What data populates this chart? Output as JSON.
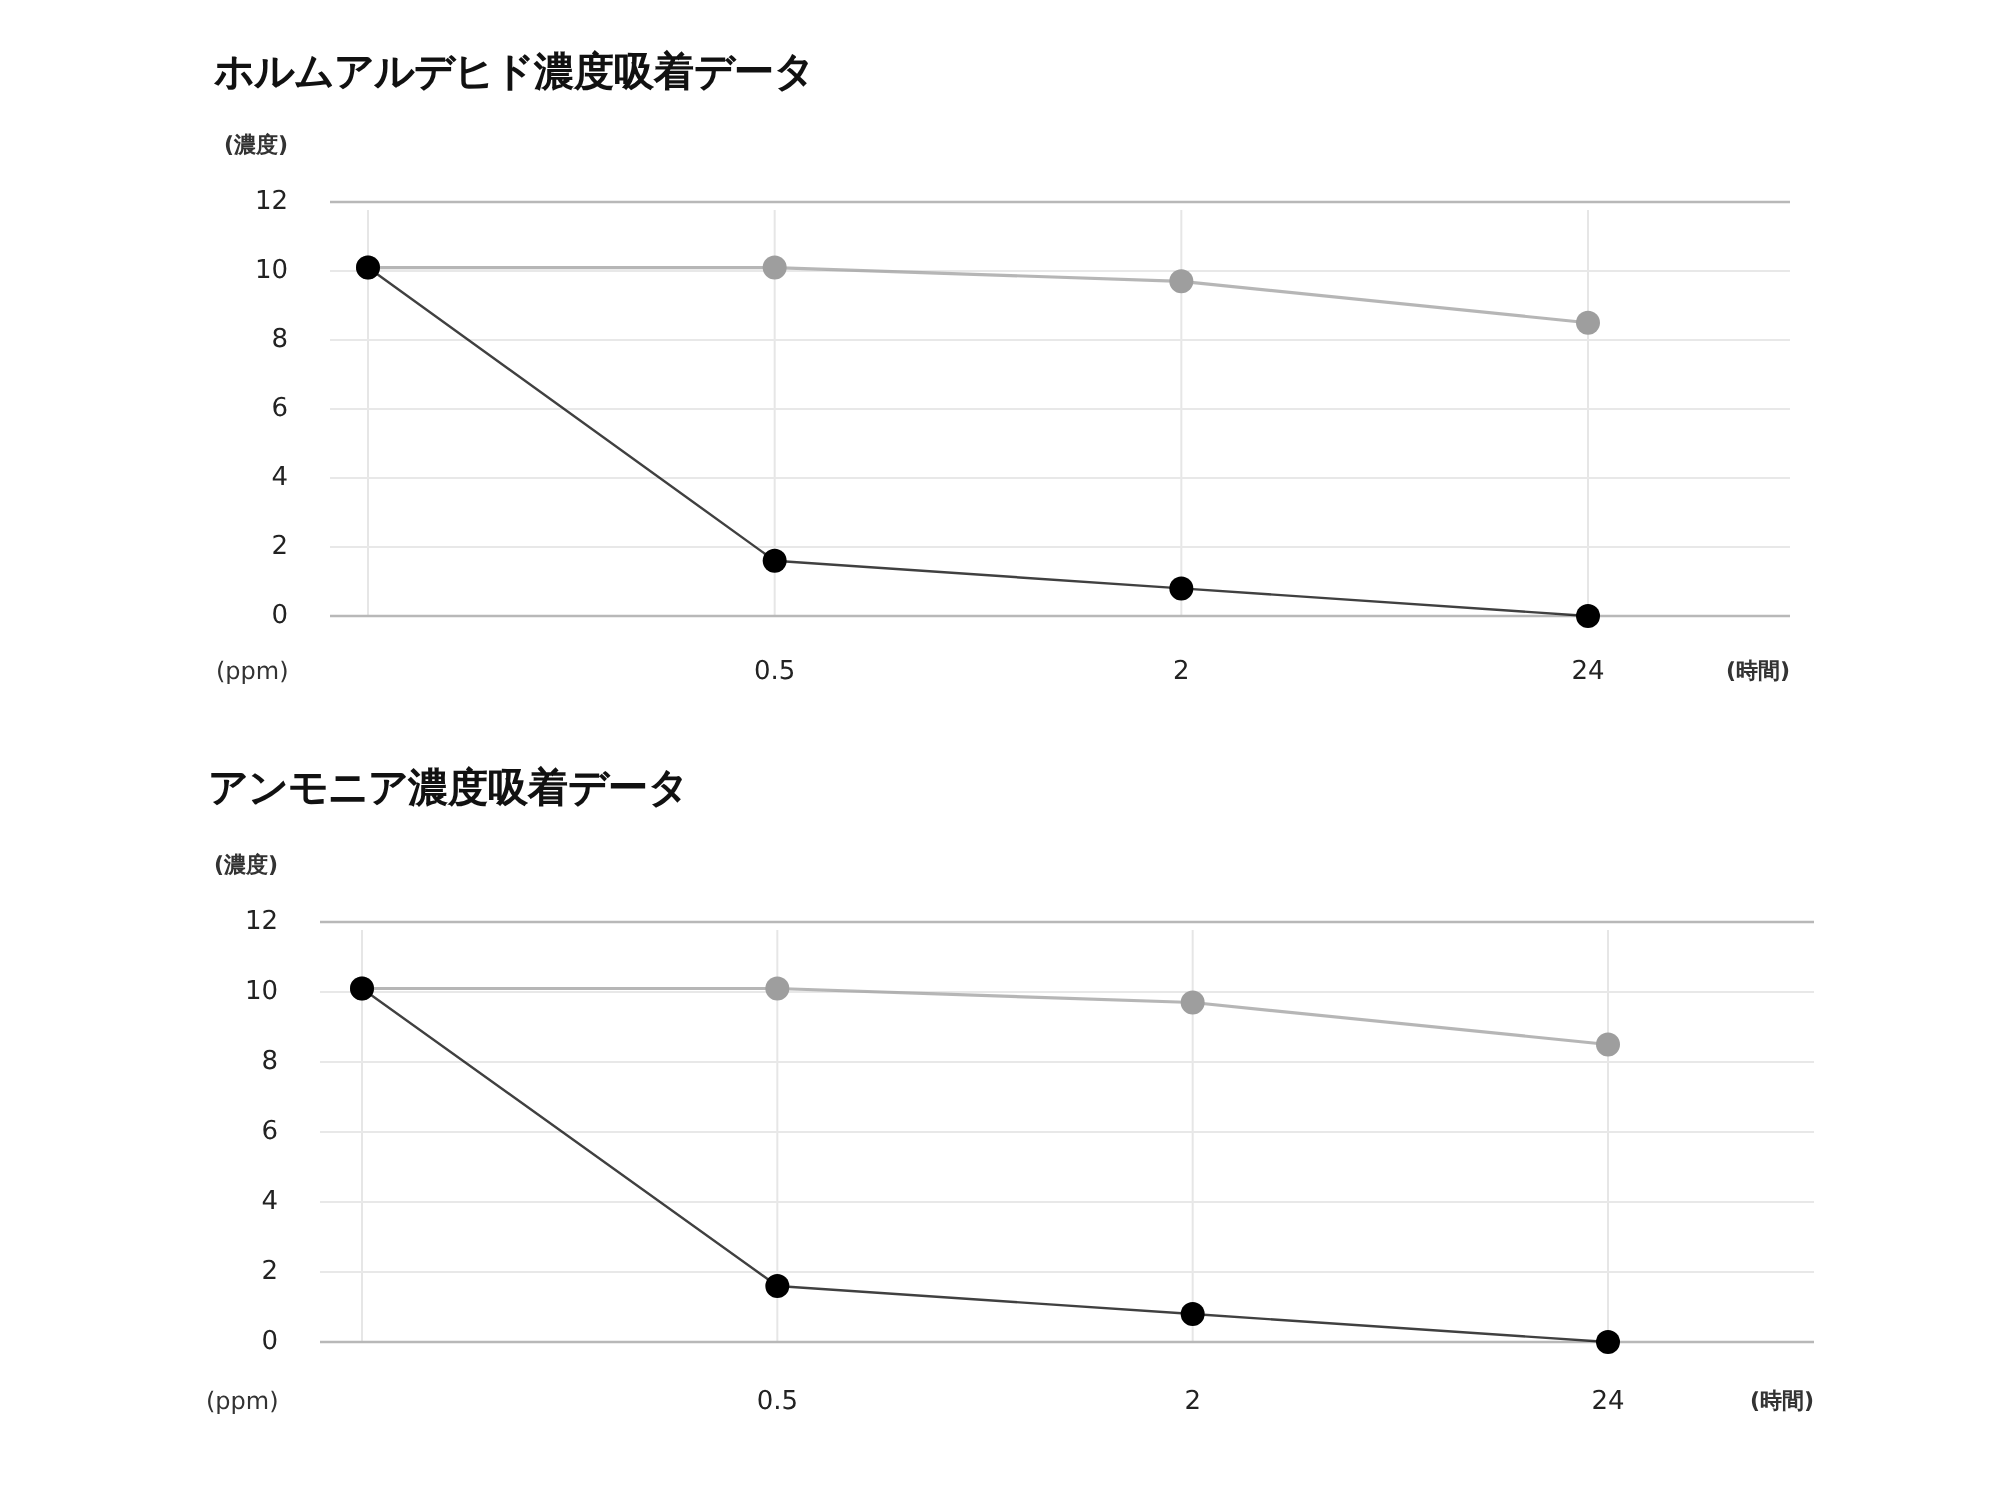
{
  "chart_data": [
    {
      "type": "line",
      "title": "ホルムアルデヒド濃度吸着データ",
      "ylabel": "(濃度)",
      "xlabel": "(時間)",
      "annotations": [
        "(ppm)"
      ],
      "categories": [
        null,
        "0.5",
        "2",
        "24"
      ],
      "ylim": [
        0,
        12
      ],
      "yticks": [
        0,
        2,
        4,
        6,
        8,
        10,
        12
      ],
      "grid": true,
      "marker": "circle",
      "series": [
        {
          "color": "#9e9e9e",
          "values": [
            10.1,
            10.1,
            9.7,
            8.5
          ]
        },
        {
          "color": "#000000",
          "values": [
            10.1,
            1.6,
            0.8,
            0
          ]
        }
      ]
    },
    {
      "type": "line",
      "title": "アンモニア濃度吸着データ",
      "ylabel": "(濃度)",
      "xlabel": "(時間)",
      "annotations": [
        "(ppm)"
      ],
      "categories": [
        null,
        "0.5",
        "2",
        "24"
      ],
      "ylim": [
        0,
        12
      ],
      "yticks": [
        0,
        2,
        4,
        6,
        8,
        10,
        12
      ],
      "grid": true,
      "marker": "circle",
      "series": [
        {
          "color": "#9e9e9e",
          "values": [
            10.1,
            10.1,
            9.7,
            8.5
          ]
        },
        {
          "color": "#000000",
          "values": [
            10.1,
            1.6,
            0.8,
            0
          ]
        }
      ]
    }
  ]
}
